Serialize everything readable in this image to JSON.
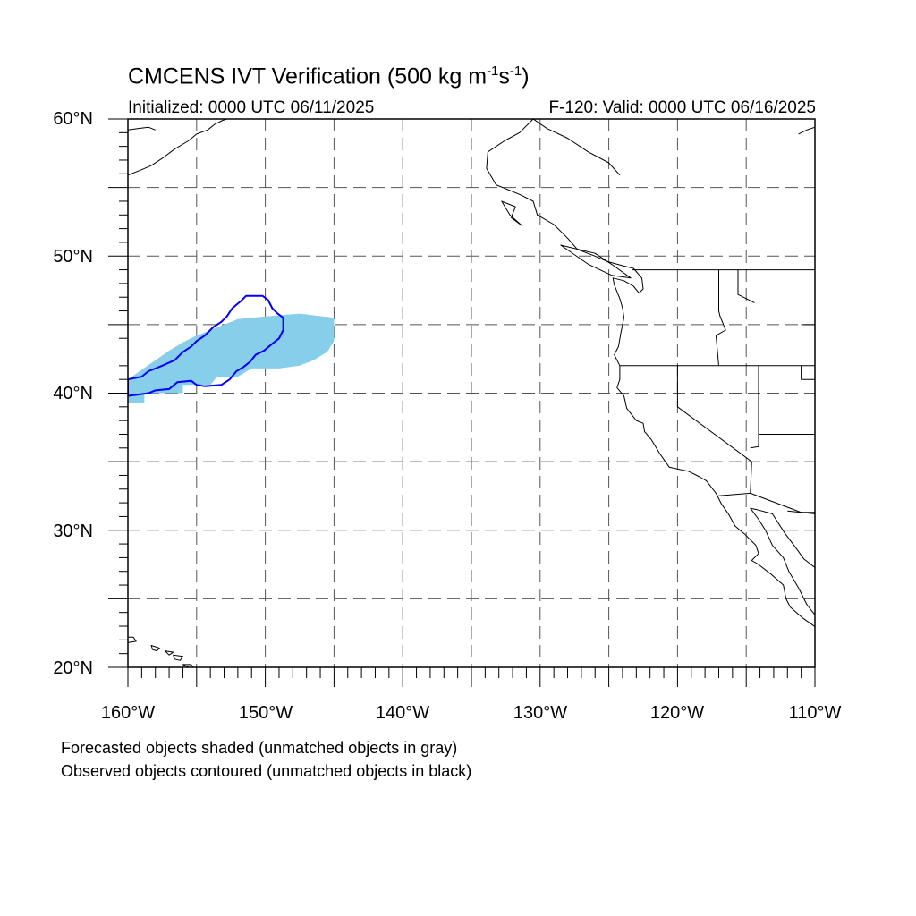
{
  "header": {
    "title_main": "CMCENS IVT Verification (500 kg m",
    "title_exp1": "-1",
    "title_mid": "s",
    "title_exp2": "-1",
    "title_close": ")",
    "initialized": "Initialized: 0000 UTC 06/11/2025",
    "valid": "F-120: Valid: 0000 UTC 06/16/2025"
  },
  "axes": {
    "lat_labels": [
      "60°N",
      "50°N",
      "40°N",
      "30°N",
      "20°N"
    ],
    "lon_labels": [
      "160°W",
      "150°W",
      "140°W",
      "130°W",
      "120°W",
      "110°W"
    ],
    "lat_range": [
      20,
      60
    ],
    "lon_range": [
      -160,
      -110
    ],
    "grid": "dashed every 5°"
  },
  "legend_notes": [
    "Forecasted objects shaded (unmatched objects in gray)",
    "Observed objects contoured (unmatched objects in black)"
  ],
  "colors": {
    "forecast_fill": "#87ceeb",
    "observed_contour": "#0000ff",
    "coastline": "#000000",
    "grid": "#555555"
  },
  "objects": {
    "forecast_shaded": {
      "matched": true,
      "polygon_lonlat": [
        [
          -160,
          39.3
        ],
        [
          -158.8,
          39.3
        ],
        [
          -158.8,
          40
        ],
        [
          -156,
          40
        ],
        [
          -156,
          40.6
        ],
        [
          -154,
          40.6
        ],
        [
          -153.5,
          41.2
        ],
        [
          -152,
          41.2
        ],
        [
          -151,
          41.8
        ],
        [
          -149,
          41.8
        ],
        [
          -147.5,
          42
        ],
        [
          -146.5,
          42.4
        ],
        [
          -145.5,
          43
        ],
        [
          -145,
          43.8
        ],
        [
          -145,
          45.5
        ],
        [
          -147.5,
          45.8
        ],
        [
          -150,
          45.6
        ],
        [
          -152,
          45.4
        ],
        [
          -153,
          45
        ],
        [
          -154,
          44.6
        ],
        [
          -155,
          44.2
        ],
        [
          -156,
          43.7
        ],
        [
          -157,
          43.1
        ],
        [
          -158,
          42.4
        ],
        [
          -159,
          41.7
        ],
        [
          -160,
          41
        ]
      ]
    },
    "observed_contour": {
      "matched": true,
      "polygon_lonlat": [
        [
          -160,
          41
        ],
        [
          -159,
          41.2
        ],
        [
          -158.5,
          41.6
        ],
        [
          -157.5,
          42
        ],
        [
          -156.6,
          42.4
        ],
        [
          -156,
          43
        ],
        [
          -155.4,
          43.4
        ],
        [
          -155,
          43.8
        ],
        [
          -154.4,
          44.2
        ],
        [
          -153.8,
          44.8
        ],
        [
          -153.2,
          45.2
        ],
        [
          -152.8,
          45.6
        ],
        [
          -152.4,
          46.2
        ],
        [
          -151.8,
          46.7
        ],
        [
          -151.4,
          47.1
        ],
        [
          -150.2,
          47.1
        ],
        [
          -149.8,
          46.8
        ],
        [
          -149.5,
          46.2
        ],
        [
          -149.1,
          45.8
        ],
        [
          -148.7,
          45.5
        ],
        [
          -148.7,
          44.6
        ],
        [
          -149,
          44
        ],
        [
          -149.5,
          43.6
        ],
        [
          -150.1,
          43.1
        ],
        [
          -150.7,
          42.8
        ],
        [
          -151.1,
          42.3
        ],
        [
          -151.6,
          41.9
        ],
        [
          -152.1,
          41.6
        ],
        [
          -152.6,
          41
        ],
        [
          -153.2,
          40.6
        ],
        [
          -154.4,
          40.5
        ],
        [
          -155,
          40.6
        ],
        [
          -155.4,
          40.9
        ],
        [
          -156.4,
          40.8
        ],
        [
          -157,
          40.3
        ],
        [
          -158,
          40.2
        ],
        [
          -158.5,
          40
        ],
        [
          -160,
          39.8
        ]
      ]
    }
  },
  "geography": {
    "coast_north_america": [
      [
        -130.5,
        60
      ],
      [
        -131.5,
        59
      ],
      [
        -132.6,
        58.4
      ],
      [
        -133.8,
        57.6
      ],
      [
        -133.9,
        56.4
      ],
      [
        -133.2,
        55.2
      ],
      [
        -131.5,
        54.5
      ],
      [
        -130.5,
        54
      ],
      [
        -130.2,
        53
      ],
      [
        -129,
        52.3
      ],
      [
        -128,
        51.3
      ],
      [
        -127.3,
        50.5
      ],
      [
        -126,
        50
      ],
      [
        -125.1,
        49.6
      ],
      [
        -124,
        49.3
      ],
      [
        -123.2,
        49.1
      ],
      [
        -122.6,
        48.4
      ],
      [
        -122.5,
        47.6
      ],
      [
        -122.8,
        47.3
      ],
      [
        -123.2,
        47.8
      ],
      [
        -123.9,
        48.2
      ],
      [
        -124.7,
        48.4
      ],
      [
        -124.6,
        47.9
      ],
      [
        -124.2,
        46.9
      ],
      [
        -124,
        46.2
      ],
      [
        -123.9,
        45.5
      ],
      [
        -124.1,
        44.5
      ],
      [
        -124.3,
        43.4
      ],
      [
        -124.6,
        42.8
      ],
      [
        -124.2,
        42
      ],
      [
        -124.2,
        41
      ],
      [
        -124.4,
        40.4
      ],
      [
        -123.9,
        39.8
      ],
      [
        -123.7,
        38.9
      ],
      [
        -123,
        38
      ],
      [
        -122.5,
        37.8
      ],
      [
        -122.4,
        37.2
      ],
      [
        -121.9,
        36.6
      ],
      [
        -121.3,
        35.6
      ],
      [
        -120.6,
        34.6
      ],
      [
        -119.2,
        34.3
      ],
      [
        -118.4,
        33.9
      ],
      [
        -117.9,
        33.6
      ],
      [
        -117.2,
        32.7
      ],
      [
        -116.8,
        31.9
      ],
      [
        -116.3,
        31.2
      ],
      [
        -115.8,
        30.3
      ],
      [
        -115.1,
        29.7
      ],
      [
        -114.3,
        28.9
      ],
      [
        -114.1,
        28.3
      ],
      [
        -114.6,
        27.8
      ],
      [
        -114.1,
        27.5
      ],
      [
        -113.2,
        26.8
      ],
      [
        -112.3,
        26
      ],
      [
        -112.1,
        25
      ],
      [
        -111.8,
        24.4
      ],
      [
        -110.9,
        23.6
      ],
      [
        -109.9,
        22.9
      ],
      [
        -109.5,
        23.2
      ],
      [
        -110.3,
        24.2
      ],
      [
        -110.6,
        24.6
      ],
      [
        -111.2,
        25.8
      ],
      [
        -111.9,
        27
      ],
      [
        -112.3,
        28
      ],
      [
        -113.1,
        28.9
      ],
      [
        -113.6,
        30
      ],
      [
        -114.1,
        30.8
      ],
      [
        -114.7,
        31.6
      ],
      [
        -114.2,
        31.5
      ],
      [
        -113.1,
        31.2
      ],
      [
        -112.2,
        29.8
      ],
      [
        -111.3,
        28.6
      ],
      [
        -110.8,
        27.9
      ],
      [
        -109.9,
        27.2
      ],
      [
        -109.3,
        26.3
      ],
      [
        -108.4,
        25.2
      ],
      [
        -107.3,
        24.3
      ],
      [
        -106,
        23
      ],
      [
        -105.3,
        21.6
      ],
      [
        -105.2,
        20.5
      ],
      [
        -105.5,
        20
      ]
    ],
    "coast_alaska": [
      [
        -160,
        55.9
      ],
      [
        -159,
        56.3
      ],
      [
        -158.3,
        56.6
      ],
      [
        -157.4,
        57.2
      ],
      [
        -156.6,
        57.8
      ],
      [
        -155.6,
        58.4
      ],
      [
        -155,
        58.9
      ],
      [
        -154.2,
        59.2
      ],
      [
        -153.7,
        59.6
      ],
      [
        -153.1,
        59.9
      ],
      [
        -152.8,
        60
      ]
    ],
    "coast_alaska_top": [
      [
        -160,
        59.2
      ],
      [
        -159.3,
        59.3
      ],
      [
        -158.5,
        59.4
      ],
      [
        -158,
        59.2
      ]
    ],
    "coast_bc_inner": [
      [
        -130.5,
        60
      ],
      [
        -129.5,
        59.3
      ],
      [
        -128,
        58.6
      ],
      [
        -126.5,
        57.6
      ],
      [
        -125,
        56.8
      ],
      [
        -124.2,
        55.9
      ]
    ],
    "coast_ne": [
      [
        -110,
        59.4
      ],
      [
        -110.6,
        59.2
      ],
      [
        -111.2,
        58.9
      ]
    ],
    "hawaii": [
      [
        [
          -160.2,
          22.2
        ],
        [
          -159.6,
          22.2
        ],
        [
          -159.4,
          21.9
        ],
        [
          -160,
          21.8
        ]
      ],
      [
        [
          -158.3,
          21.6
        ],
        [
          -157.7,
          21.4
        ],
        [
          -157.9,
          21.2
        ],
        [
          -158.2,
          21.3
        ]
      ],
      [
        [
          -157.3,
          21.2
        ],
        [
          -156.7,
          21.1
        ],
        [
          -157.0,
          20.9
        ]
      ],
      [
        [
          -156.7,
          20.9
        ],
        [
          -156.0,
          20.8
        ],
        [
          -156.2,
          20.5
        ],
        [
          -156.6,
          20.6
        ]
      ],
      [
        [
          -156.0,
          20.2
        ],
        [
          -155.1,
          19.8
        ],
        [
          -155.4,
          20.2
        ]
      ]
    ],
    "islands": [
      [
        [
          -132.8,
          54
        ],
        [
          -131.8,
          53.6
        ],
        [
          -132.1,
          52.8
        ],
        [
          -131.3,
          52.2
        ],
        [
          -132.2,
          53
        ],
        [
          -132.8,
          54
        ]
      ],
      [
        [
          -128.5,
          50.8
        ],
        [
          -126,
          50.2
        ],
        [
          -124.8,
          49.4
        ],
        [
          -123.4,
          48.4
        ],
        [
          -124.8,
          48.6
        ],
        [
          -126.5,
          49.4
        ],
        [
          -128.5,
          50.8
        ]
      ]
    ],
    "borders": [
      [
        [
          -123.3,
          49
        ],
        [
          -110,
          49
        ]
      ],
      [
        [
          -117,
          49
        ],
        [
          -117,
          46
        ],
        [
          -116.9,
          45.6
        ],
        [
          -116.5,
          44.6
        ],
        [
          -117.2,
          44.2
        ],
        [
          -117,
          42
        ]
      ],
      [
        [
          -124.2,
          42
        ],
        [
          -110,
          42
        ]
      ],
      [
        [
          -120,
          42
        ],
        [
          -120,
          39
        ],
        [
          -114.6,
          35
        ],
        [
          -114.7,
          32.7
        ],
        [
          -111,
          31.3
        ],
        [
          -108.2,
          31.3
        ],
        [
          -108.2,
          31.8
        ],
        [
          -106.5,
          31.8
        ]
      ],
      [
        [
          -117.1,
          32.5
        ],
        [
          -114.7,
          32.7
        ]
      ],
      [
        [
          -114.1,
          42
        ],
        [
          -114.1,
          37
        ],
        [
          -114.1,
          36.1
        ],
        [
          -114.7,
          36
        ]
      ],
      [
        [
          -111,
          45
        ],
        [
          -110,
          45
        ]
      ],
      [
        [
          -111,
          42
        ],
        [
          -111,
          41
        ],
        [
          -110,
          41
        ]
      ],
      [
        [
          -114.1,
          37
        ],
        [
          -110,
          37
        ]
      ],
      [
        [
          -115.6,
          49
        ],
        [
          -115.6,
          47.2
        ],
        [
          -114.4,
          46.6
        ]
      ],
      [
        [
          -112,
          31.4
        ],
        [
          -110,
          31.2
        ]
      ]
    ]
  }
}
